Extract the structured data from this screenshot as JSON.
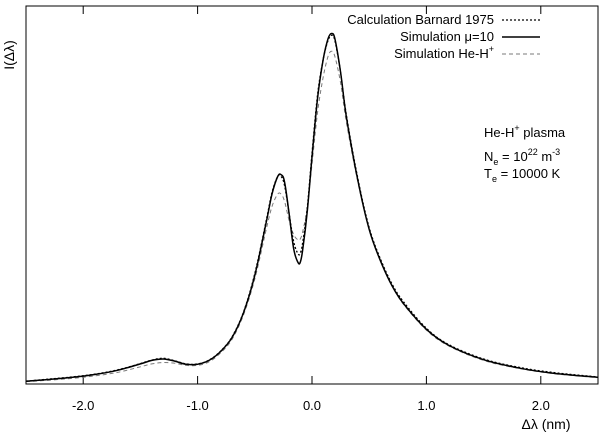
{
  "chart_data": {
    "type": "line",
    "xlabel": "Δλ (nm)",
    "ylabel": "I(Δλ)",
    "xlim": [
      -2.5,
      2.5
    ],
    "ylim": [
      0,
      1.0
    ],
    "xticks": [
      -2.0,
      -1.0,
      0.0,
      1.0,
      2.0
    ],
    "xtick_labels": [
      "-2.0",
      "-1.0",
      "0.0",
      "1.0",
      "2.0"
    ],
    "yticks_labeled": false,
    "grid": false,
    "legend_position": "top-right",
    "x": [
      -2.5,
      -2.3,
      -2.1,
      -1.9,
      -1.7,
      -1.5,
      -1.4,
      -1.3,
      -1.2,
      -1.1,
      -1.0,
      -0.9,
      -0.8,
      -0.7,
      -0.6,
      -0.5,
      -0.4,
      -0.35,
      -0.3,
      -0.27,
      -0.24,
      -0.2,
      -0.16,
      -0.12,
      -0.1,
      -0.08,
      -0.04,
      0.0,
      0.05,
      0.1,
      0.14,
      0.17,
      0.2,
      0.25,
      0.3,
      0.4,
      0.5,
      0.6,
      0.7,
      0.8,
      1.0,
      1.2,
      1.5,
      1.8,
      2.1,
      2.5
    ],
    "series": [
      {
        "name": "Calculation Barnard 1975",
        "style": "dotted",
        "color": "#000000",
        "values": [
          0.005,
          0.011,
          0.017,
          0.025,
          0.037,
          0.055,
          0.065,
          0.07,
          0.063,
          0.054,
          0.054,
          0.065,
          0.09,
          0.13,
          0.2,
          0.31,
          0.46,
          0.54,
          0.585,
          0.585,
          0.56,
          0.48,
          0.4,
          0.365,
          0.37,
          0.4,
          0.5,
          0.65,
          0.82,
          0.92,
          0.97,
          0.985,
          0.97,
          0.88,
          0.76,
          0.58,
          0.44,
          0.35,
          0.28,
          0.23,
          0.155,
          0.108,
          0.068,
          0.045,
          0.03,
          0.017
        ]
      },
      {
        "name": "Simulation μ=10",
        "style": "solid",
        "color": "#000000",
        "values": [
          0.005,
          0.01,
          0.016,
          0.024,
          0.036,
          0.054,
          0.064,
          0.068,
          0.062,
          0.053,
          0.053,
          0.064,
          0.089,
          0.128,
          0.198,
          0.305,
          0.455,
          0.535,
          0.585,
          0.59,
          0.57,
          0.48,
          0.38,
          0.34,
          0.345,
          0.38,
          0.49,
          0.64,
          0.81,
          0.92,
          0.975,
          0.99,
          0.975,
          0.88,
          0.755,
          0.575,
          0.435,
          0.345,
          0.275,
          0.225,
          0.152,
          0.106,
          0.066,
          0.043,
          0.028,
          0.016
        ]
      },
      {
        "name": "Simulation He-H⁺",
        "style": "dashed",
        "color": "#7a7a7a",
        "values": [
          0.004,
          0.008,
          0.013,
          0.02,
          0.03,
          0.046,
          0.054,
          0.058,
          0.056,
          0.05,
          0.05,
          0.06,
          0.085,
          0.123,
          0.192,
          0.295,
          0.435,
          0.5,
          0.535,
          0.535,
          0.515,
          0.46,
          0.42,
          0.405,
          0.41,
          0.43,
          0.5,
          0.62,
          0.77,
          0.87,
          0.925,
          0.94,
          0.925,
          0.85,
          0.74,
          0.57,
          0.435,
          0.345,
          0.275,
          0.223,
          0.15,
          0.104,
          0.064,
          0.042,
          0.027,
          0.015
        ]
      }
    ],
    "annotation": {
      "line1_base": "He-H",
      "line1_sup": "+",
      "line1_tail": " plasma",
      "line2_base": "N",
      "line2_sub": "e",
      "line2_mid": " = 10",
      "line2_sup": "22",
      "line2_unit": " m",
      "line2_unit_sup": "-3",
      "line3_base": "T",
      "line3_sub": "e",
      "line3_tail": " = 10000 K"
    },
    "legend": [
      {
        "text": "Calculation Barnard 1975",
        "style": "dotted"
      },
      {
        "text": "Simulation μ=10",
        "style": "solid"
      },
      {
        "text_base": "Simulation He-H",
        "text_sup": "+",
        "style": "dashed"
      }
    ]
  }
}
